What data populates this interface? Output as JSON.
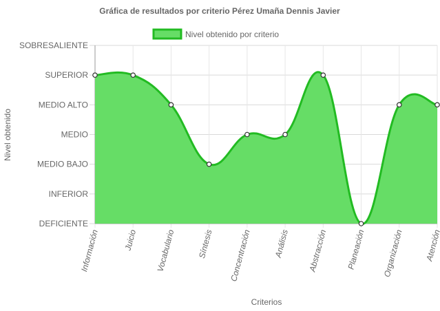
{
  "chart_data": {
    "type": "area",
    "title": "Gráfica de resultados por criterio Pérez Umaña Dennis Javier",
    "xlabel": "Criterios",
    "ylabel": "Nivel obtenido",
    "categories": [
      "Información",
      "Juicio",
      "Vocabulario",
      "Síntesis",
      "Concentración",
      "Análisis",
      "Abstracción",
      "Planeación",
      "Organización",
      "Atención"
    ],
    "y_levels": [
      "DEFICIENTE",
      "INFERIOR",
      "MEDIO BAJO",
      "MEDIO",
      "MEDIO ALTO",
      "SUPERIOR",
      "SOBRESALIENTE"
    ],
    "ylim": [
      0,
      6
    ],
    "grid": true,
    "legend_position": "top",
    "series": [
      {
        "name": "Nivel obtenido por criterio",
        "values": [
          5,
          5,
          4,
          2,
          3,
          3,
          5,
          0,
          4,
          4
        ],
        "fill_color": "#66dd66",
        "line_color": "#22bb22"
      }
    ]
  }
}
